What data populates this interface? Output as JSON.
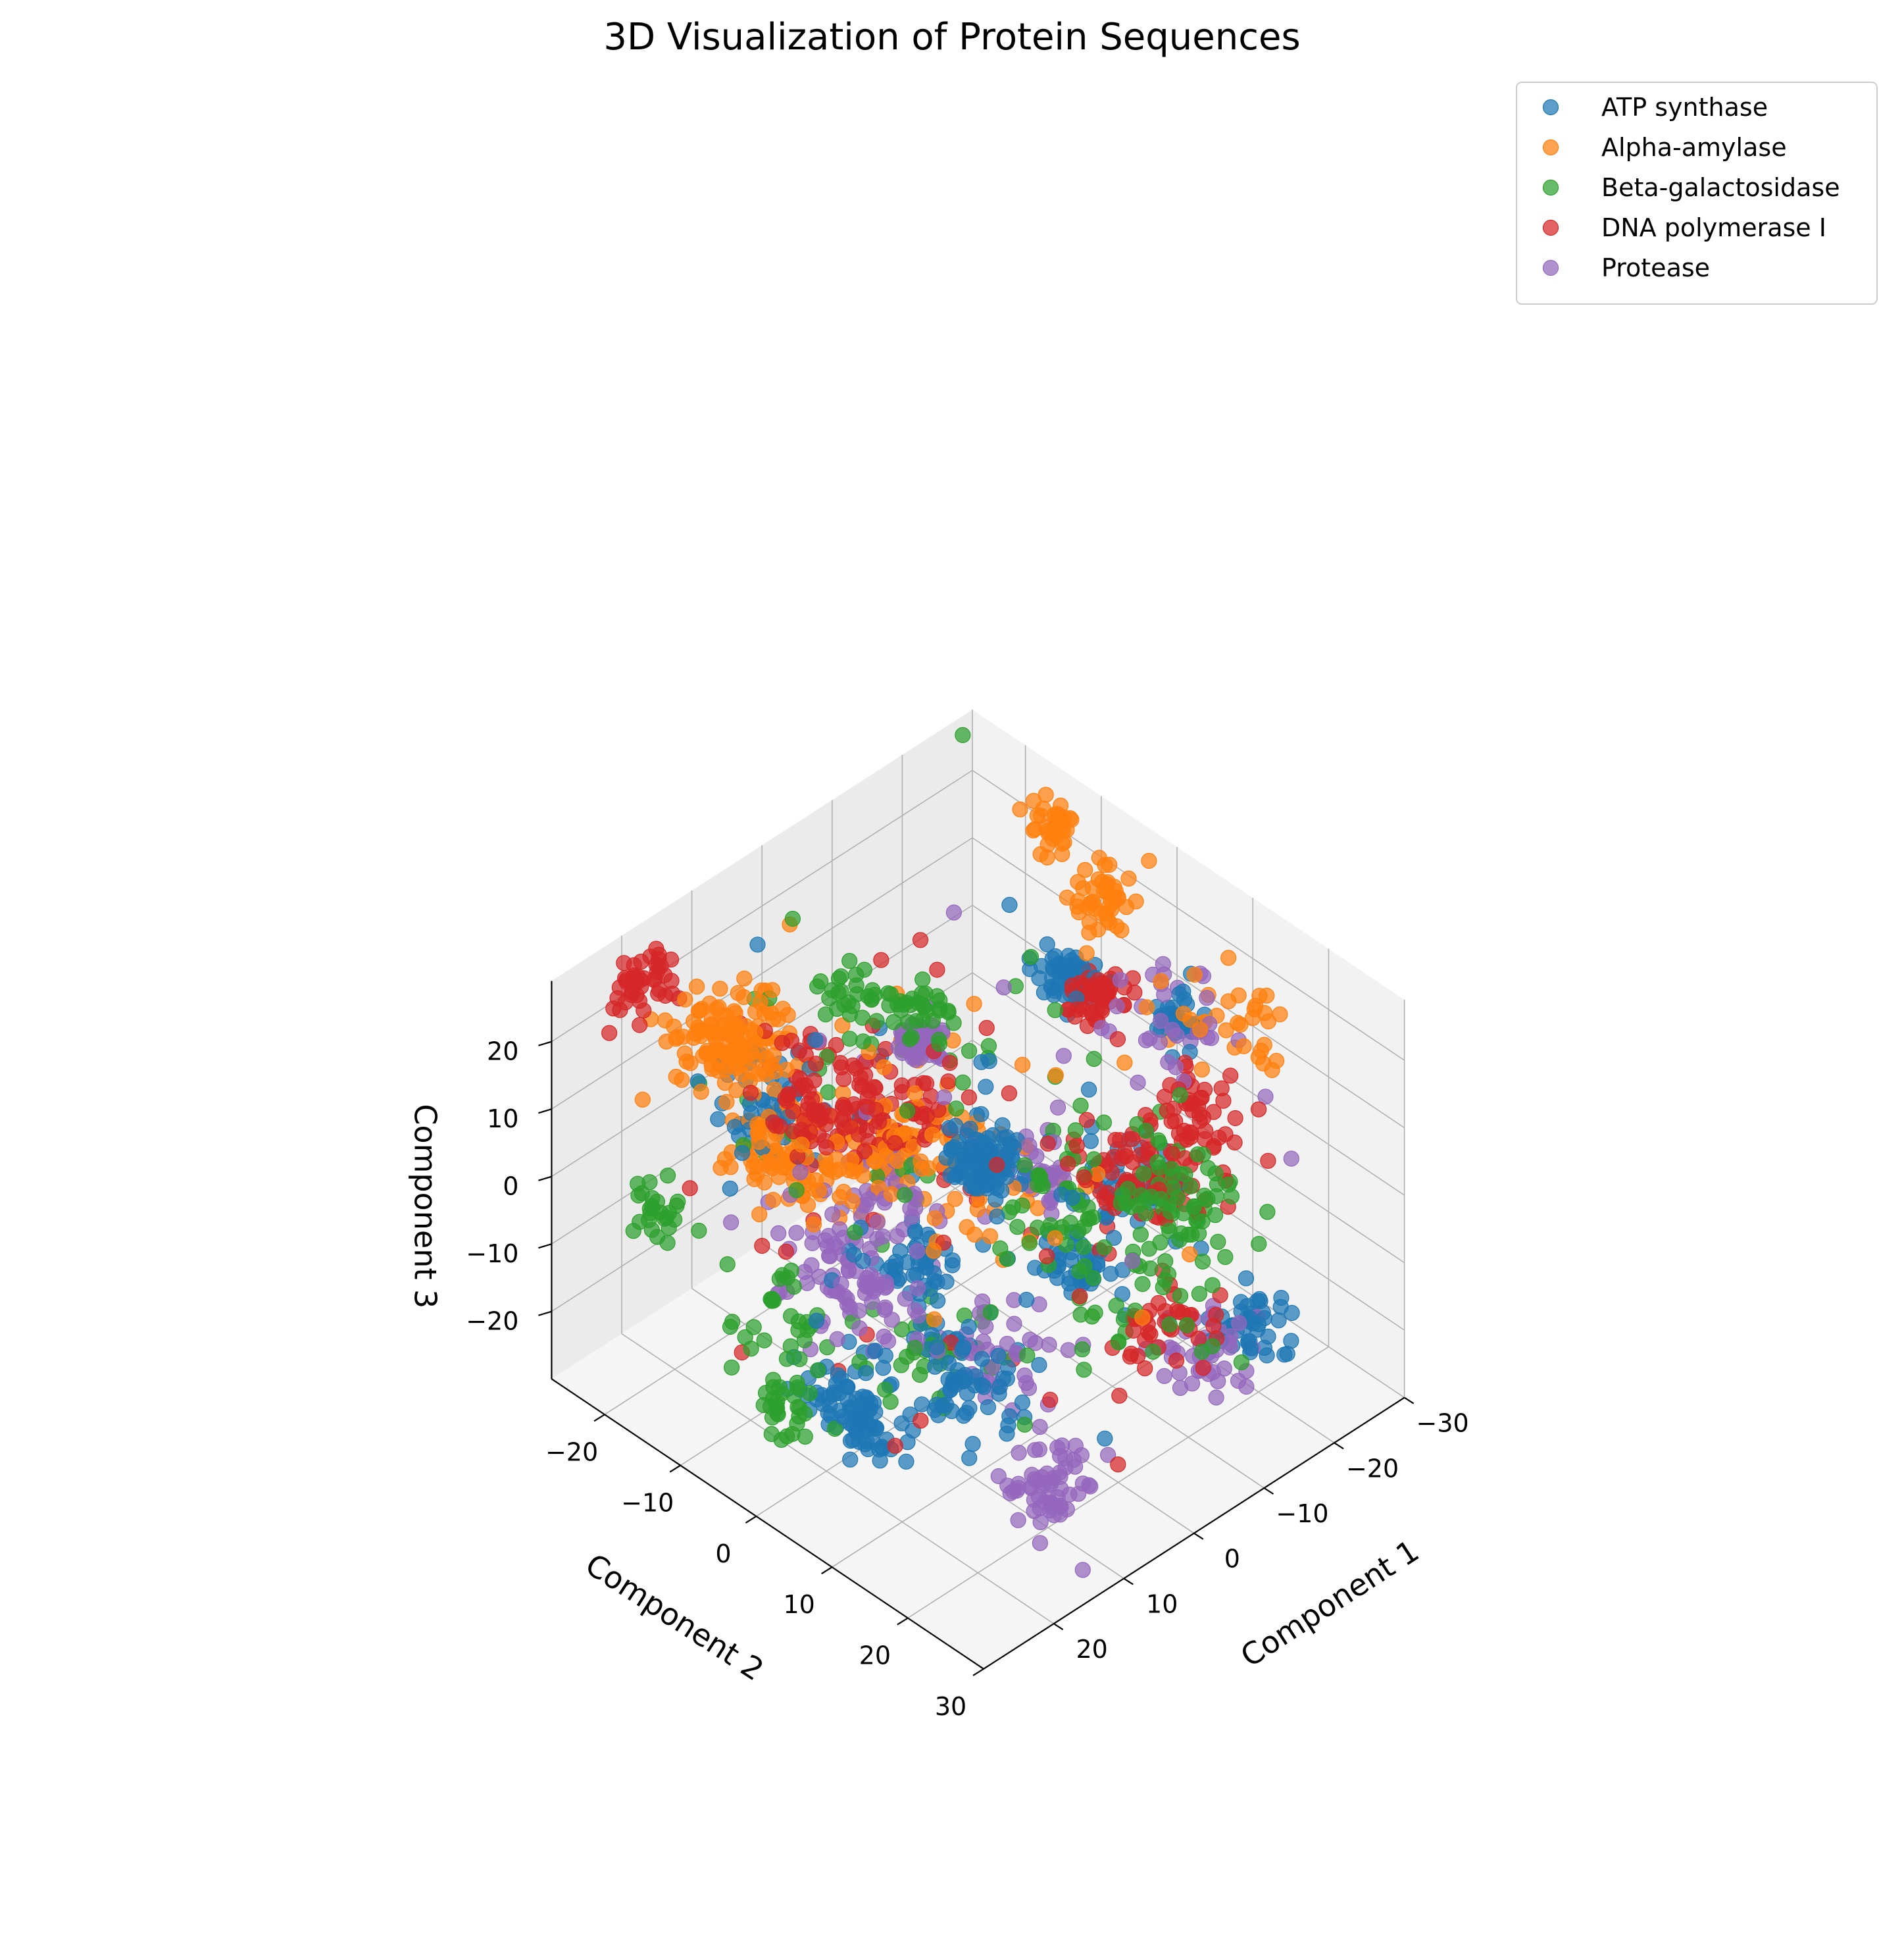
{
  "chart_data": {
    "type": "scatter3d",
    "title": "3D Visualization of Protein Sequences",
    "xlabel": "Component 1",
    "ylabel": "Component 2",
    "zlabel": "Component 3",
    "xlim": [
      -30,
      30
    ],
    "ylim": [
      -27,
      30
    ],
    "zlim": [
      -30,
      29
    ],
    "xticks": [
      -30,
      -20,
      -10,
      0,
      10,
      20
    ],
    "yticks": [
      -20,
      -10,
      0,
      10,
      20,
      30
    ],
    "zticks": [
      -20,
      -10,
      0,
      10,
      20
    ],
    "xtick_labels": [
      "−30",
      "−20",
      "−10",
      "0",
      "10",
      "20"
    ],
    "ytick_labels": [
      "−20",
      "−10",
      "0",
      "10",
      "20",
      "30"
    ],
    "ztick_labels": [
      "−20",
      "−10",
      "0",
      "10",
      "20"
    ],
    "grid": true,
    "legend_position": "top-right",
    "series": [
      {
        "name": "ATP synthase",
        "color": "#1f77b4",
        "clusters": [
          {
            "center": [
              2,
              4,
              7
            ],
            "spread": 1.8,
            "n": 100
          },
          {
            "center": [
              -18,
              -4,
              15
            ],
            "spread": 1.5,
            "n": 55
          },
          {
            "center": [
              -22,
              7,
              14
            ],
            "spread": 1.4,
            "n": 35
          },
          {
            "center": [
              -20,
              3,
              -12
            ],
            "spread": 2.2,
            "n": 45
          },
          {
            "center": [
              -8,
              8,
              -12
            ],
            "spread": 2.2,
            "n": 45
          },
          {
            "center": [
              2,
              -4,
              -15
            ],
            "spread": 2.2,
            "n": 40
          },
          {
            "center": [
              12,
              -4,
              -28
            ],
            "spread": 2.2,
            "n": 45
          },
          {
            "center": [
              -20,
              19,
              -21
            ],
            "spread": 2.0,
            "n": 45
          },
          {
            "center": [
              18,
              4,
              -22
            ],
            "spread": 2.2,
            "n": 45
          },
          {
            "center": [
              6,
              -20,
              -1
            ],
            "spread": 3.0,
            "n": 45
          },
          {
            "center": [
              15,
              15,
              -11
            ],
            "spread": 2.5,
            "n": 40
          },
          {
            "center": [
              8,
              4,
              -18
            ],
            "spread": 3.0,
            "n": 30
          },
          {
            "center": [
              0,
              0,
              0
            ],
            "spread": 12.0,
            "n": 40
          }
        ]
      },
      {
        "name": "Alpha-amylase",
        "color": "#ff7f0e",
        "clusters": [
          {
            "center": [
              -22,
              -2,
              25
            ],
            "spread": 1.8,
            "n": 45
          },
          {
            "center": [
              -25,
              -12,
              26
            ],
            "spread": 1.5,
            "n": 35
          },
          {
            "center": [
              -24,
              12,
              16
            ],
            "spread": 3.0,
            "n": 35
          },
          {
            "center": [
              14,
              -20,
              16
            ],
            "spread": 2.8,
            "n": 75
          },
          {
            "center": [
              7,
              -23,
              7
            ],
            "spread": 2.5,
            "n": 60
          },
          {
            "center": [
              10,
              -17,
              -1
            ],
            "spread": 3.0,
            "n": 60
          },
          {
            "center": [
              3,
              -16,
              -7
            ],
            "spread": 3.0,
            "n": 45
          },
          {
            "center": [
              6,
              -6,
              4
            ],
            "spread": 3.5,
            "n": 40
          },
          {
            "center": [
              0,
              -5,
              -2
            ],
            "spread": 4.0,
            "n": 40
          },
          {
            "center": [
              0,
              0,
              0
            ],
            "spread": 10.0,
            "n": 40
          }
        ]
      },
      {
        "name": "Beta-galactosidase",
        "color": "#2ca02c",
        "clusters": [
          {
            "center": [
              8,
              -8,
              27
            ],
            "spread": 1.8,
            "n": 30
          },
          {
            "center": [
              4,
              -2,
              26
            ],
            "spread": 1.8,
            "n": 30
          },
          {
            "center": [
              -8,
              20,
              6
            ],
            "spread": 3.0,
            "n": 65
          },
          {
            "center": [
              -2,
              12,
              3
            ],
            "spread": 3.5,
            "n": 35
          },
          {
            "center": [
              -2,
              20,
              -4
            ],
            "spread": 3.0,
            "n": 25
          },
          {
            "center": [
              22,
              -4,
              -22
            ],
            "spread": 2.0,
            "n": 30
          },
          {
            "center": [
              24,
              -18,
              -2
            ],
            "spread": 1.5,
            "n": 25
          },
          {
            "center": [
              20,
              -6,
              -12
            ],
            "spread": 2.5,
            "n": 30
          },
          {
            "center": [
              8,
              2,
              -18
            ],
            "spread": 3.0,
            "n": 30
          },
          {
            "center": [
              0,
              0,
              0
            ],
            "spread": 13.0,
            "n": 70
          }
        ]
      },
      {
        "name": "DNA polymerase I",
        "color": "#d62728",
        "clusters": [
          {
            "center": [
              -18,
              0,
              15
            ],
            "spread": 1.5,
            "n": 55
          },
          {
            "center": [
              -18,
              15,
              9
            ],
            "spread": 2.5,
            "n": 40
          },
          {
            "center": [
              -10,
              16,
              5
            ],
            "spread": 2.5,
            "n": 40
          },
          {
            "center": [
              -12,
              10,
              2
            ],
            "spread": 3.0,
            "n": 40
          },
          {
            "center": [
              -4,
              22,
              -8
            ],
            "spread": 2.5,
            "n": 35
          },
          {
            "center": [
              18,
              -27,
              22
            ],
            "spread": 2.0,
            "n": 45
          },
          {
            "center": [
              8,
              -10,
              8
            ],
            "spread": 3.5,
            "n": 80
          },
          {
            "center": [
              0,
              -10,
              2
            ],
            "spread": 3.0,
            "n": 50
          },
          {
            "center": [
              0,
              0,
              0
            ],
            "spread": 12.0,
            "n": 60
          }
        ]
      },
      {
        "name": "Protease",
        "color": "#9467bd",
        "clusters": [
          {
            "center": [
              -2,
              -8,
              13
            ],
            "spread": 1.2,
            "n": 55
          },
          {
            "center": [
              -20,
              8,
              15
            ],
            "spread": 3.0,
            "n": 30
          },
          {
            "center": [
              -6,
              4,
              -1
            ],
            "spread": 1.4,
            "n": 35
          },
          {
            "center": [
              6,
              -6,
              -2
            ],
            "spread": 2.5,
            "n": 35
          },
          {
            "center": [
              10,
              -8,
              -13
            ],
            "spread": 3.0,
            "n": 45
          },
          {
            "center": [
              -15,
              18,
              -23
            ],
            "spread": 2.5,
            "n": 45
          },
          {
            "center": [
              10,
              20,
              -24
            ],
            "spread": 2.5,
            "n": 60
          },
          {
            "center": [
              4,
              8,
              -18
            ],
            "spread": 3.0,
            "n": 40
          },
          {
            "center": [
              12,
              0,
              -8
            ],
            "spread": 3.0,
            "n": 30
          },
          {
            "center": [
              0,
              0,
              0
            ],
            "spread": 12.0,
            "n": 30
          }
        ]
      }
    ]
  }
}
